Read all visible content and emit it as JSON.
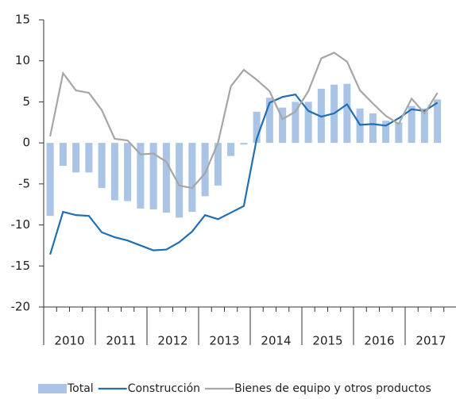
{
  "chart_data": {
    "type": "bar_line",
    "categories": [
      null,
      null,
      null,
      null,
      null,
      null,
      null,
      null,
      null,
      null,
      null,
      null,
      null,
      null,
      null,
      null,
      null,
      null,
      null,
      null,
      null,
      null,
      null,
      null,
      null,
      null,
      null,
      null,
      null,
      null,
      null,
      null
    ],
    "year_labels": [
      "2010",
      "2011",
      "2012",
      "2013",
      "2014",
      "2015",
      "2016",
      "2017"
    ],
    "series": [
      {
        "name": "Total",
        "kind": "bar",
        "color": "#a9c4e4",
        "values": [
          -8.9,
          -2.8,
          -3.6,
          -3.6,
          -5.5,
          -7.0,
          -7.1,
          -8.0,
          -8.1,
          -8.5,
          -9.1,
          -8.4,
          -6.5,
          -5.2,
          -1.6,
          -0.2,
          3.8,
          5.5,
          4.3,
          5.0,
          5.0,
          6.6,
          7.1,
          7.2,
          4.2,
          3.6,
          2.7,
          2.5,
          4.5,
          4.2,
          5.3,
          null
        ]
      },
      {
        "name": "Construcción",
        "kind": "line",
        "color": "#1f6fb5",
        "values": [
          -13.6,
          -8.4,
          -8.8,
          -8.9,
          -10.9,
          -11.5,
          -11.9,
          -12.5,
          -13.1,
          -13.0,
          -12.1,
          -10.8,
          -8.8,
          -9.3,
          -8.5,
          -7.7,
          0.5,
          4.9,
          5.6,
          5.9,
          3.9,
          3.2,
          3.6,
          4.7,
          2.2,
          2.3,
          2.1,
          3.0,
          4.1,
          3.9,
          4.9,
          null
        ]
      },
      {
        "name": "Bienes de equipo y otros productos",
        "kind": "line",
        "color": "#a6a6a6",
        "values": [
          0.8,
          8.5,
          6.4,
          6.1,
          4.0,
          0.5,
          0.3,
          -1.4,
          -1.3,
          -2.3,
          -5.2,
          -5.5,
          -3.7,
          0.0,
          6.9,
          8.9,
          7.7,
          6.3,
          2.9,
          3.8,
          6.3,
          10.3,
          11.0,
          9.9,
          6.4,
          4.8,
          3.3,
          2.3,
          5.4,
          3.6,
          6.1,
          null
        ]
      }
    ],
    "ylim": [
      -20,
      15
    ],
    "yticks": [
      -20,
      -15,
      -10,
      -5,
      0,
      5,
      10,
      15
    ]
  }
}
